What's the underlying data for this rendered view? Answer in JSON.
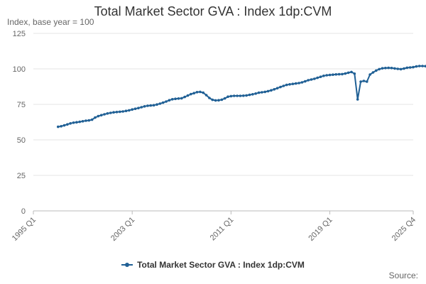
{
  "chart_data": {
    "type": "line",
    "title": "Total Market Sector GVA : Index 1dp:CVM",
    "subtitle": "Index, base year = 100",
    "xlabel": "",
    "ylabel": "",
    "ylim": [
      0,
      125
    ],
    "y_ticks": [
      "0",
      "25",
      "50",
      "75",
      "100",
      "125"
    ],
    "x_tick_labels": [
      "1995 Q1",
      "2003 Q1",
      "2011 Q1",
      "2019 Q1",
      "2025 Q4"
    ],
    "grid": true,
    "legend_position": "bottom",
    "x_start": "1997 Q1",
    "series": [
      {
        "name": "Total Market Sector GVA : Index 1dp:CVM",
        "color": "#206095",
        "values": [
          59.2,
          59.6,
          60.2,
          60.9,
          61.6,
          62.1,
          62.4,
          62.7,
          63.1,
          63.5,
          63.7,
          64.2,
          65.7,
          66.7,
          67.4,
          68.0,
          68.6,
          69.0,
          69.4,
          69.6,
          69.8,
          70.0,
          70.4,
          70.8,
          71.4,
          71.9,
          72.4,
          73.0,
          73.6,
          74.0,
          74.2,
          74.4,
          74.9,
          75.5,
          76.2,
          77.0,
          77.9,
          78.6,
          78.9,
          79.1,
          79.3,
          80.2,
          81.2,
          82.2,
          82.9,
          83.6,
          83.8,
          83.2,
          81.5,
          79.5,
          78.2,
          77.8,
          77.9,
          78.3,
          79.2,
          80.4,
          80.8,
          81.0,
          81.0,
          81.0,
          81.1,
          81.3,
          81.7,
          82.1,
          82.6,
          83.2,
          83.5,
          83.8,
          84.3,
          84.9,
          85.6,
          86.4,
          87.2,
          88.0,
          88.7,
          89.1,
          89.4,
          89.7,
          90.0,
          90.5,
          91.2,
          92.0,
          92.5,
          93.0,
          93.7,
          94.4,
          95.1,
          95.5,
          95.7,
          95.9,
          96.1,
          96.2,
          96.3,
          96.7,
          97.3,
          97.8,
          96.6,
          78.5,
          91.0,
          91.5,
          91.0,
          96.0,
          97.5,
          98.8,
          99.8,
          100.4,
          100.6,
          100.7,
          100.6,
          100.3,
          100.0,
          99.8,
          100.2,
          100.8,
          101.0,
          101.2,
          101.7,
          102.0,
          102.0,
          101.9
        ]
      }
    ]
  },
  "legend": {
    "label": "Total Market Sector GVA : Index 1dp:CVM"
  },
  "footer": {
    "source_label": "Source:"
  }
}
